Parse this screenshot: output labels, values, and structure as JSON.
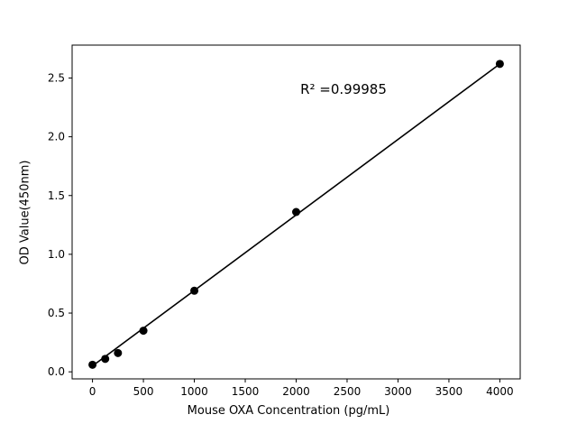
{
  "figure": {
    "background": "#ffffff"
  },
  "chart_data": {
    "type": "scatter",
    "title": "",
    "xlabel": "Mouse OXA Concentration (pg/mL)",
    "ylabel": "OD Value(450nm)",
    "x": [
      0,
      125,
      250,
      500,
      1000,
      2000,
      4000
    ],
    "y": [
      0.06,
      0.11,
      0.16,
      0.35,
      0.69,
      1.36,
      2.62
    ],
    "fit_line": {
      "x": [
        0,
        4000
      ],
      "y": [
        0.05,
        2.62
      ]
    },
    "xlim": [
      -200,
      4200
    ],
    "ylim": [
      -0.06,
      2.78
    ],
    "xticks": [
      0,
      500,
      1000,
      1500,
      2000,
      2500,
      3000,
      3500,
      4000
    ],
    "yticks": [
      0.0,
      0.5,
      1.0,
      1.5,
      2.0,
      2.5
    ],
    "annotation": {
      "text": "R² =0.99985",
      "x": 2470,
      "y": 2.4
    },
    "marker_color": "#000000",
    "line_color": "#000000",
    "grid": false,
    "legend": null
  }
}
